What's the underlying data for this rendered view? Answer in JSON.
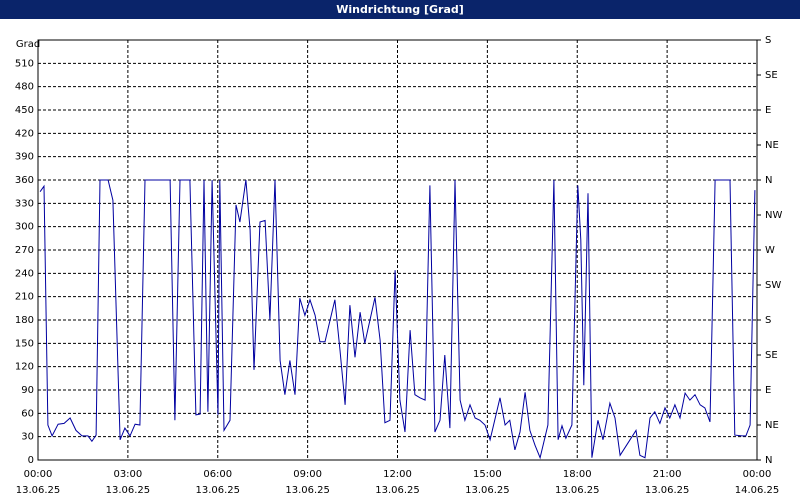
{
  "chart_data": {
    "type": "line",
    "title": "Windrichtung [Grad]",
    "y_label": "Grad",
    "xlim": [
      0,
      24
    ],
    "ylim": [
      0,
      540
    ],
    "y2lim": [
      0,
      540
    ],
    "grid": true,
    "xticks": [
      {
        "value": 0,
        "label": "00:00"
      },
      {
        "value": 3,
        "label": "03:00"
      },
      {
        "value": 6,
        "label": "06:00"
      },
      {
        "value": 9,
        "label": "09:00"
      },
      {
        "value": 12,
        "label": "12:00"
      },
      {
        "value": 15,
        "label": "15:00"
      },
      {
        "value": 18,
        "label": "18:00"
      },
      {
        "value": 21,
        "label": "21:00"
      },
      {
        "value": 24,
        "label": "00:00"
      }
    ],
    "xtick_dates": [
      "13.06.25",
      "13.06.25",
      "13.06.25",
      "13.06.25",
      "13.06.25",
      "13.06.25",
      "13.06.25",
      "13.06.25",
      "14.06.25"
    ],
    "yticks": [
      0,
      30,
      60,
      90,
      120,
      150,
      180,
      210,
      240,
      270,
      300,
      330,
      360,
      390,
      420,
      450,
      480,
      510
    ],
    "y2ticks": [
      {
        "value": 0,
        "label": "N"
      },
      {
        "value": 45,
        "label": "NE"
      },
      {
        "value": 90,
        "label": "E"
      },
      {
        "value": 135,
        "label": "SE"
      },
      {
        "value": 180,
        "label": "S"
      },
      {
        "value": 225,
        "label": "SW"
      },
      {
        "value": 270,
        "label": "W"
      },
      {
        "value": 315,
        "label": "NW"
      },
      {
        "value": 360,
        "label": "N"
      },
      {
        "value": 405,
        "label": "NE"
      },
      {
        "value": 450,
        "label": "E"
      },
      {
        "value": 495,
        "label": "SE"
      },
      {
        "value": 540,
        "label": "S"
      }
    ],
    "series": [
      {
        "color": "#0000a0",
        "x": [
          0.07,
          0.2,
          0.33,
          0.47,
          0.67,
          0.87,
          1.07,
          1.27,
          1.47,
          1.67,
          1.8,
          1.94,
          2.07,
          2.34,
          2.5,
          2.74,
          2.9,
          3.07,
          3.24,
          3.4,
          3.57,
          4.41,
          4.57,
          4.74,
          5.07,
          5.27,
          5.41,
          5.54,
          5.67,
          5.81,
          6.01,
          6.07,
          6.21,
          6.41,
          6.61,
          6.74,
          6.94,
          7.08,
          7.21,
          7.41,
          7.58,
          7.74,
          7.91,
          8.08,
          8.24,
          8.41,
          8.58,
          8.74,
          8.91,
          9.08,
          9.25,
          9.41,
          9.58,
          9.75,
          9.91,
          10.08,
          10.25,
          10.41,
          10.58,
          10.75,
          10.91,
          11.25,
          11.42,
          11.58,
          11.75,
          11.92,
          12.08,
          12.25,
          12.42,
          12.58,
          12.75,
          12.92,
          13.08,
          13.25,
          13.42,
          13.58,
          13.75,
          13.92,
          14.09,
          14.25,
          14.42,
          14.59,
          14.75,
          14.92,
          15.09,
          15.42,
          15.59,
          15.75,
          15.92,
          16.09,
          16.26,
          16.42,
          16.59,
          16.76,
          17.02,
          17.22,
          17.36,
          17.49,
          17.62,
          17.82,
          18.02,
          18.12,
          18.22,
          18.36,
          18.49,
          18.69,
          18.86,
          19.09,
          19.26,
          19.43,
          19.76,
          19.96,
          20.09,
          20.26,
          20.43,
          20.59,
          20.76,
          20.93,
          21.09,
          21.26,
          21.43,
          21.6,
          21.76,
          21.93,
          22.1,
          22.26,
          22.43,
          22.6,
          23.1,
          23.26,
          23.5,
          23.63,
          23.77,
          23.93
        ],
        "values": [
          345,
          352,
          45,
          31,
          46,
          47,
          54,
          38,
          31,
          31,
          24,
          32,
          360,
          360,
          334,
          26,
          41,
          31,
          46,
          45,
          360,
          360,
          51,
          360,
          360,
          58,
          59,
          360,
          62,
          360,
          58,
          360,
          38,
          51,
          328,
          306,
          360,
          296,
          116,
          306,
          308,
          180,
          360,
          128,
          84,
          128,
          84,
          208,
          186,
          206,
          186,
          152,
          152,
          180,
          206,
          141,
          71,
          199,
          132,
          190,
          150,
          209,
          154,
          48,
          51,
          244,
          77,
          36,
          167,
          84,
          80,
          77,
          353,
          36,
          51,
          135,
          41,
          360,
          77,
          51,
          71,
          54,
          51,
          45,
          26,
          80,
          45,
          51,
          13,
          36,
          87,
          38,
          19,
          3,
          45,
          360,
          26,
          44,
          28,
          45,
          353,
          283,
          96,
          343,
          3,
          51,
          26,
          73,
          54,
          6,
          26,
          38,
          6,
          3,
          54,
          62,
          47,
          67,
          54,
          71,
          54,
          86,
          77,
          84,
          71,
          67,
          49,
          360,
          360,
          32,
          31,
          31,
          45,
          347
        ]
      }
    ]
  }
}
